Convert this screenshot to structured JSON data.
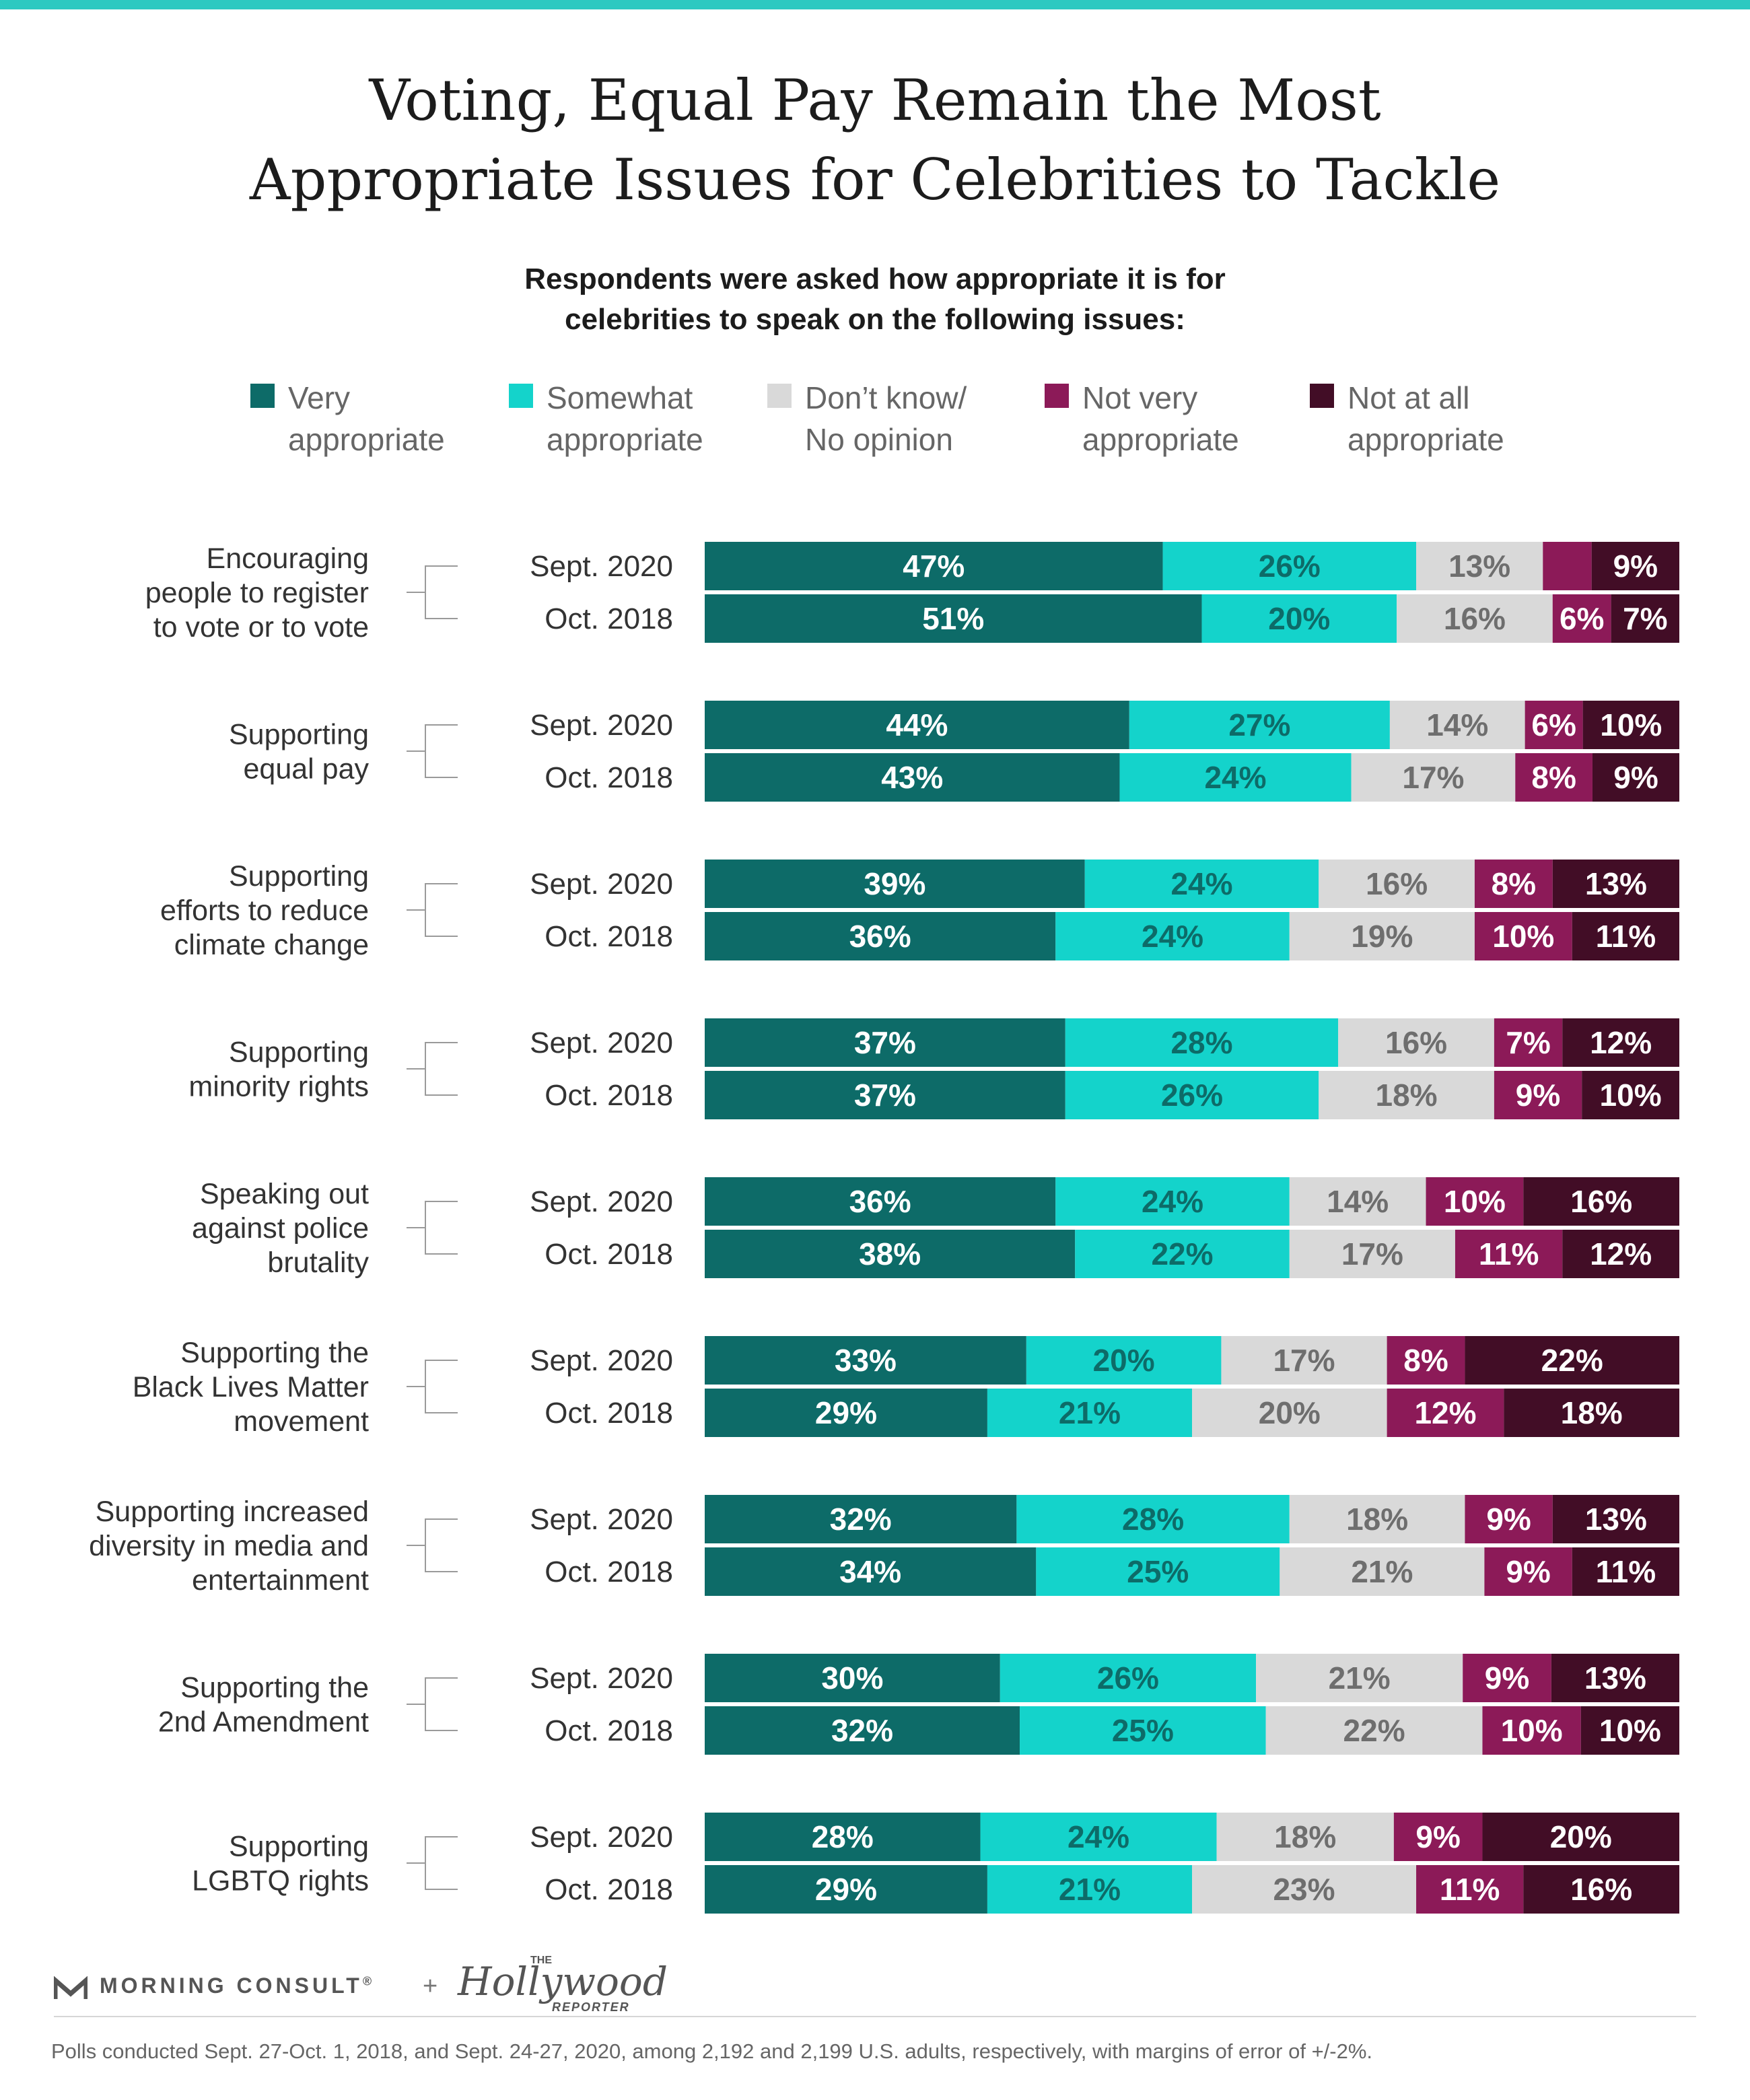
{
  "title": {
    "line1": "Voting, Equal Pay Remain the Most",
    "line2": "Appropriate Issues for Celebrities to Tackle"
  },
  "subtitle": {
    "line1": "Respondents were asked how appropriate it is for",
    "line2": "celebrities to speak on the following issues:"
  },
  "legend": [
    {
      "line1": "Very",
      "line2": "appropriate",
      "color": "#0d6b68"
    },
    {
      "line1": "Somewhat",
      "line2": "appropriate",
      "color": "#14d3cb"
    },
    {
      "line1": "Don’t know/",
      "line2": "No opinion",
      "color": "#d9d9d9"
    },
    {
      "line1": "Not very",
      "line2": "appropriate",
      "color": "#8c1a58"
    },
    {
      "line1": "Not at all",
      "line2": "appropriate",
      "color": "#420d26"
    }
  ],
  "chart_data": {
    "type": "bar",
    "orientation": "horizontal",
    "stacked": true,
    "unit": "%",
    "series": [
      {
        "name": "Very appropriate",
        "color": "#0d6b68",
        "label_color": "#ffffff"
      },
      {
        "name": "Somewhat appropriate",
        "color": "#14d3cb",
        "label_color": "#0d6b68"
      },
      {
        "name": "Don’t know/No opinion",
        "color": "#d9d9d9",
        "label_color": "#6e6e6e"
      },
      {
        "name": "Not very appropriate",
        "color": "#8c1a58",
        "label_color": "#ffffff"
      },
      {
        "name": "Not at all appropriate",
        "color": "#420d26",
        "label_color": "#ffffff"
      }
    ],
    "groups": [
      {
        "label": [
          "Encouraging",
          "people to register",
          "to vote or to vote"
        ],
        "rows": [
          {
            "period": "Sept. 2020",
            "values": [
              47,
              26,
              13,
              5,
              9
            ],
            "labels": [
              "47%",
              "26%",
              "13%",
              "",
              "9%"
            ]
          },
          {
            "period": "Oct. 2018",
            "values": [
              51,
              20,
              16,
              6,
              7
            ],
            "labels": [
              "51%",
              "20%",
              "16%",
              "6%",
              "7%"
            ]
          }
        ]
      },
      {
        "label": [
          "Supporting",
          "equal pay"
        ],
        "rows": [
          {
            "period": "Sept. 2020",
            "values": [
              44,
              27,
              14,
              6,
              10
            ],
            "labels": [
              "44%",
              "27%",
              "14%",
              "6%",
              "10%"
            ]
          },
          {
            "period": "Oct. 2018",
            "values": [
              43,
              24,
              17,
              8,
              9
            ],
            "labels": [
              "43%",
              "24%",
              "17%",
              "8%",
              "9%"
            ]
          }
        ]
      },
      {
        "label": [
          "Supporting",
          "efforts to reduce",
          "climate change"
        ],
        "rows": [
          {
            "period": "Sept. 2020",
            "values": [
              39,
              24,
              16,
              8,
              13
            ],
            "labels": [
              "39%",
              "24%",
              "16%",
              "8%",
              "13%"
            ]
          },
          {
            "period": "Oct. 2018",
            "values": [
              36,
              24,
              19,
              10,
              11
            ],
            "labels": [
              "36%",
              "24%",
              "19%",
              "10%",
              "11%"
            ]
          }
        ]
      },
      {
        "label": [
          "Supporting",
          "minority rights"
        ],
        "rows": [
          {
            "period": "Sept. 2020",
            "values": [
              37,
              28,
              16,
              7,
              12
            ],
            "labels": [
              "37%",
              "28%",
              "16%",
              "7%",
              "12%"
            ]
          },
          {
            "period": "Oct. 2018",
            "values": [
              37,
              26,
              18,
              9,
              10
            ],
            "labels": [
              "37%",
              "26%",
              "18%",
              "9%",
              "10%"
            ]
          }
        ]
      },
      {
        "label": [
          "Speaking out",
          "against police",
          "brutality"
        ],
        "rows": [
          {
            "period": "Sept. 2020",
            "values": [
              36,
              24,
              14,
              10,
              16
            ],
            "labels": [
              "36%",
              "24%",
              "14%",
              "10%",
              "16%"
            ]
          },
          {
            "period": "Oct. 2018",
            "values": [
              38,
              22,
              17,
              11,
              12
            ],
            "labels": [
              "38%",
              "22%",
              "17%",
              "11%",
              "12%"
            ]
          }
        ]
      },
      {
        "label": [
          "Supporting the",
          "Black Lives Matter",
          "movement"
        ],
        "rows": [
          {
            "period": "Sept. 2020",
            "values": [
              33,
              20,
              17,
              8,
              22
            ],
            "labels": [
              "33%",
              "20%",
              "17%",
              "8%",
              "22%"
            ]
          },
          {
            "period": "Oct. 2018",
            "values": [
              29,
              21,
              20,
              12,
              18
            ],
            "labels": [
              "29%",
              "21%",
              "20%",
              "12%",
              "18%"
            ]
          }
        ]
      },
      {
        "label": [
          "Supporting increased",
          "diversity in media and",
          "entertainment"
        ],
        "rows": [
          {
            "period": "Sept. 2020",
            "values": [
              32,
              28,
              18,
              9,
              13
            ],
            "labels": [
              "32%",
              "28%",
              "18%",
              "9%",
              "13%"
            ]
          },
          {
            "period": "Oct. 2018",
            "values": [
              34,
              25,
              21,
              9,
              11
            ],
            "labels": [
              "34%",
              "25%",
              "21%",
              "9%",
              "11%"
            ]
          }
        ]
      },
      {
        "label": [
          "Supporting the",
          "2nd Amendment"
        ],
        "rows": [
          {
            "period": "Sept. 2020",
            "values": [
              30,
              26,
              21,
              9,
              13
            ],
            "labels": [
              "30%",
              "26%",
              "21%",
              "9%",
              "13%"
            ]
          },
          {
            "period": "Oct. 2018",
            "values": [
              32,
              25,
              22,
              10,
              10
            ],
            "labels": [
              "32%",
              "25%",
              "22%",
              "10%",
              "10%"
            ]
          }
        ]
      },
      {
        "label": [
          "Supporting",
          "LGBTQ rights"
        ],
        "rows": [
          {
            "period": "Sept. 2020",
            "values": [
              28,
              24,
              18,
              9,
              20
            ],
            "labels": [
              "28%",
              "24%",
              "18%",
              "9%",
              "20%"
            ]
          },
          {
            "period": "Oct. 2018",
            "values": [
              29,
              21,
              23,
              11,
              16
            ],
            "labels": [
              "29%",
              "21%",
              "23%",
              "11%",
              "16%"
            ]
          }
        ]
      }
    ]
  },
  "branding": {
    "morning_consult": "MORNING CONSULT",
    "trademark": "®",
    "plus": "+",
    "thr_the": "THE",
    "thr_name": "Hollywood",
    "thr_reporter": "REPORTER"
  },
  "footnote": "Polls conducted Sept. 27-Oct. 1, 2018, and Sept. 24-27, 2020, among 2,192 and 2,199 U.S. adults, respectively, with margins of error of +/-2%."
}
